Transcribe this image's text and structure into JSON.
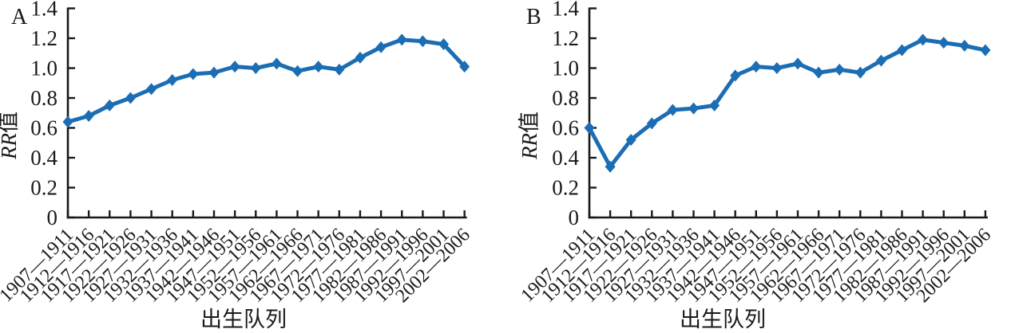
{
  "figure": {
    "background": "#ffffff",
    "line_color": "#1b6db4",
    "marker_color": "#1b6db4",
    "axis_color": "#1a1a1a",
    "text_color": "#1a1a1a"
  },
  "chart_data": [
    {
      "type": "line",
      "panel_label": "A",
      "title": "",
      "xlabel": "出生队列",
      "ylabel": "RR值",
      "ylabel_italic_part": "RR",
      "ylabel_cjk_part": "值",
      "ylim": [
        0,
        1.4
      ],
      "ytick_labels": [
        "0",
        "0.2",
        "0.4",
        "0.6",
        "0.8",
        "1.0",
        "1.2",
        "1.4"
      ],
      "grid": "off",
      "legend": "none",
      "categories": [
        "1907—1911",
        "1912—1916",
        "1917—1921",
        "1922—1926",
        "1927—1931",
        "1932—1936",
        "1937—1941",
        "1942—1946",
        "1947—1951",
        "1952—1956",
        "1957—1961",
        "1962—1966",
        "1967—1971",
        "1972—1976",
        "1977—1981",
        "1982—1986",
        "1987—1991",
        "1992—1996",
        "1997—2001",
        "2002—2006"
      ],
      "values": [
        0.64,
        0.68,
        0.75,
        0.8,
        0.86,
        0.92,
        0.96,
        0.97,
        1.01,
        1.0,
        1.03,
        0.98,
        1.01,
        0.99,
        1.07,
        1.14,
        1.19,
        1.18,
        1.16,
        1.01
      ]
    },
    {
      "type": "line",
      "panel_label": "B",
      "title": "",
      "xlabel": "出生队列",
      "ylabel": "RR值",
      "ylabel_italic_part": "RR",
      "ylabel_cjk_part": "值",
      "ylim": [
        0,
        1.4
      ],
      "ytick_labels": [
        "0",
        "0.2",
        "0.4",
        "0.6",
        "0.8",
        "1.0",
        "1.2",
        "1.4"
      ],
      "grid": "off",
      "legend": "none",
      "categories": [
        "1907—1911",
        "1912—1916",
        "1917—1921",
        "1922—1926",
        "1927—1931",
        "1932—1936",
        "1937—1941",
        "1942—1946",
        "1947—1951",
        "1952—1956",
        "1957—1961",
        "1962—1966",
        "1967—1971",
        "1972—1976",
        "1977—1981",
        "1982—1986",
        "1987—1991",
        "1992—1996",
        "1997—2001",
        "2002—2006"
      ],
      "values": [
        0.6,
        0.34,
        0.52,
        0.63,
        0.72,
        0.73,
        0.75,
        0.95,
        1.01,
        1.0,
        1.03,
        0.97,
        0.99,
        0.97,
        1.05,
        1.12,
        1.19,
        1.17,
        1.15,
        1.12
      ]
    }
  ]
}
